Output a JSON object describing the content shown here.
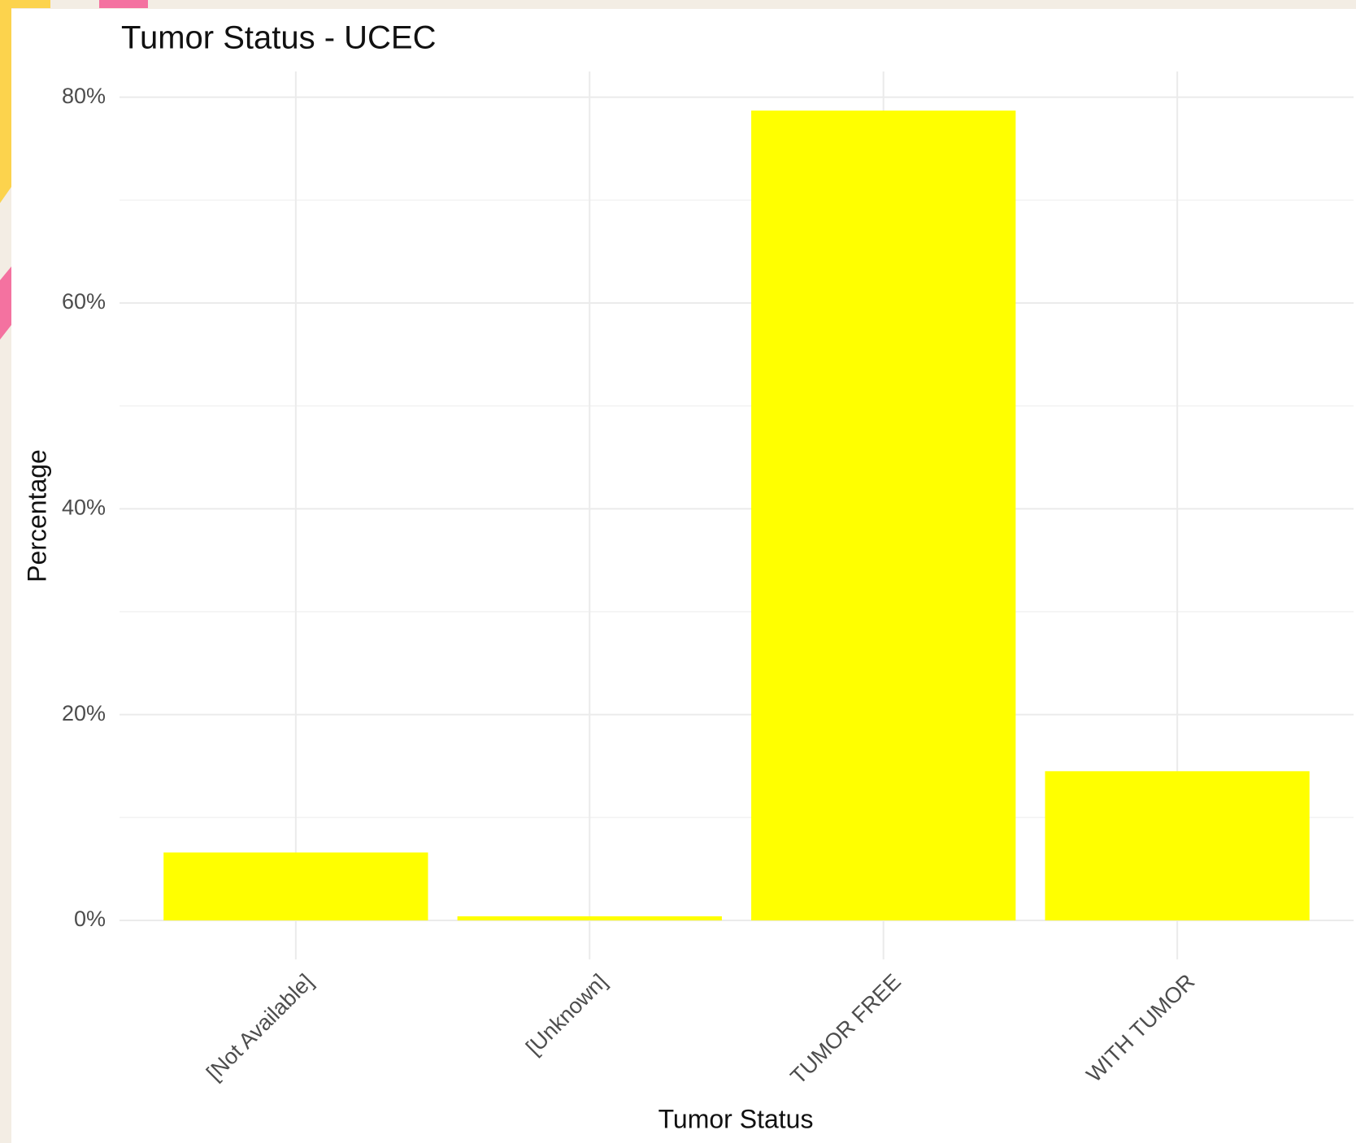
{
  "chart_data": {
    "type": "bar",
    "title": "Tumor Status - UCEC",
    "x_label": "Tumor Status",
    "y_label": "Percentage",
    "categories": [
      "[Not Available]",
      "[Unknown]",
      "TUMOR FREE",
      "WITH TUMOR"
    ],
    "values": [
      6.6,
      0.4,
      78.7,
      14.5
    ],
    "color": "#ffff00",
    "ylim": [
      0,
      82.5
    ],
    "yticks": [
      {
        "value": 0,
        "label": "0%"
      },
      {
        "value": 20,
        "label": "20%"
      },
      {
        "value": 40,
        "label": "40%"
      },
      {
        "value": 60,
        "label": "60%"
      },
      {
        "value": 80,
        "label": "80%"
      }
    ],
    "minor_yticks": [
      10,
      30,
      50,
      70
    ],
    "grid": true
  }
}
